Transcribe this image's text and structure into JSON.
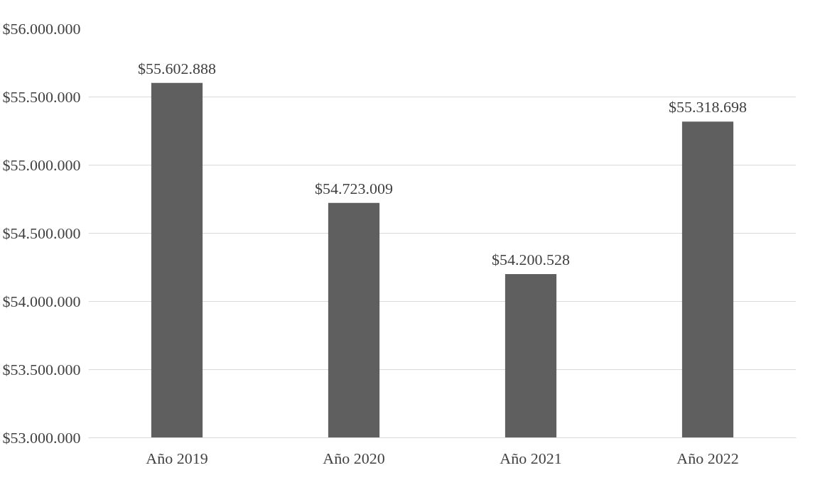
{
  "chart_data": {
    "type": "bar",
    "categories": [
      "Año 2019",
      "Año 2020",
      "Año 2021",
      "Año 2022"
    ],
    "values": [
      55602888,
      54723009,
      54200528,
      55318698
    ],
    "color": "#5f5f5f",
    "value_labels": [
      "$55.602.888",
      "$54.723.009",
      "$54.200.528",
      "$55.318.698"
    ],
    "ylim": [
      53000000,
      56000000
    ],
    "yticks": [
      {
        "value": 53000000,
        "label": "$53.000.000"
      },
      {
        "value": 53500000,
        "label": "$53.500.000"
      },
      {
        "value": 54000000,
        "label": "$54.000.000"
      },
      {
        "value": 54500000,
        "label": "$54.500.000"
      },
      {
        "value": 55000000,
        "label": "$55.000.000"
      },
      {
        "value": 55500000,
        "label": "$55.500.000"
      },
      {
        "value": 56000000,
        "label": "$56.000.000"
      }
    ],
    "grid": "y"
  }
}
